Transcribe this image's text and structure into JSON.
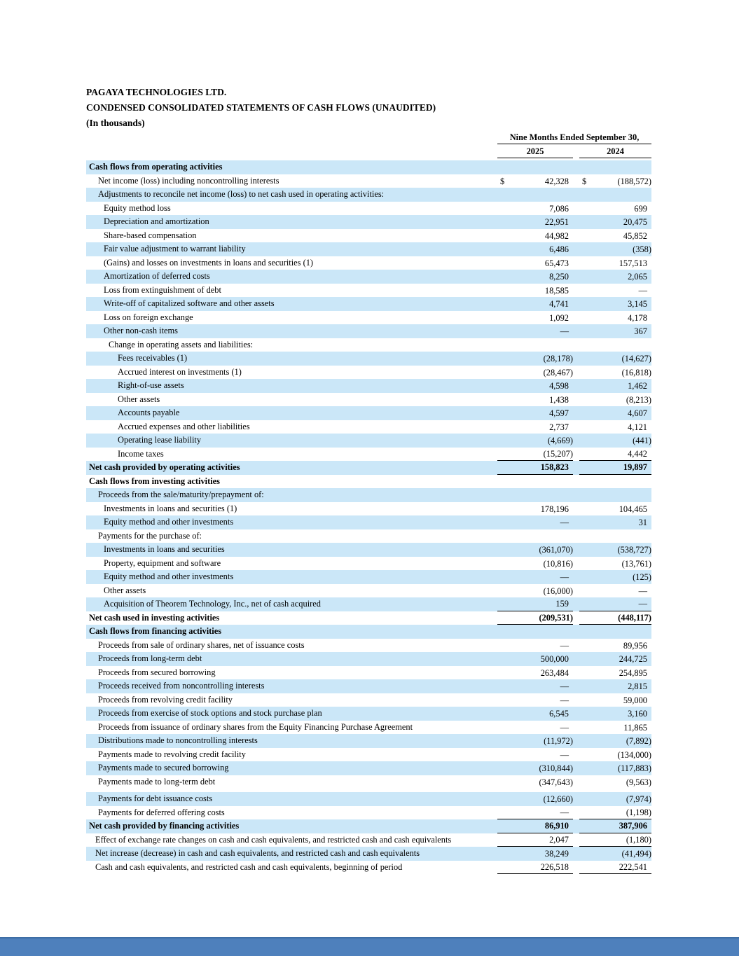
{
  "colors": {
    "highlight": "#cbe7f8",
    "footer_bar": "#4e80bc",
    "footer_bar_edge": "#3e6ea5",
    "text": "#000000"
  },
  "document": {
    "title_lines": [
      "PAGAYA TECHNOLOGIES LTD.",
      "CONDENSED CONSOLIDATED STATEMENTS OF CASH FLOWS (UNAUDITED)",
      "(In thousands)"
    ]
  },
  "table": {
    "period_header": "Nine Months Ended September 30,",
    "columns": [
      "2025",
      "2024"
    ],
    "currency_symbol": "$",
    "rows": [
      {
        "label": "Cash flows from operating activities",
        "indent": 0,
        "bold": true,
        "highlight": true,
        "dollar": false,
        "v2025": "",
        "v2024": "",
        "rule_below": false,
        "gap_before": false
      },
      {
        "label": "Net income (loss) including noncontrolling interests",
        "indent": 13,
        "bold": false,
        "highlight": false,
        "dollar": true,
        "v2025": "42,328",
        "v2024": "(188,572)",
        "rule_below": false,
        "gap_before": false
      },
      {
        "label": "Adjustments to reconcile net income (loss) to net cash used in operating activities:",
        "indent": 13,
        "bold": false,
        "highlight": true,
        "dollar": false,
        "v2025": "",
        "v2024": "",
        "rule_below": false,
        "gap_before": false
      },
      {
        "label": "Equity method loss",
        "indent": 21,
        "bold": false,
        "highlight": false,
        "dollar": false,
        "v2025": "7,086",
        "v2024": "699",
        "rule_below": false,
        "gap_before": false
      },
      {
        "label": "Depreciation and amortization",
        "indent": 21,
        "bold": false,
        "highlight": true,
        "dollar": false,
        "v2025": "22,951",
        "v2024": "20,475",
        "rule_below": false,
        "gap_before": false
      },
      {
        "label": "Share-based compensation",
        "indent": 21,
        "bold": false,
        "highlight": false,
        "dollar": false,
        "v2025": "44,982",
        "v2024": "45,852",
        "rule_below": false,
        "gap_before": false
      },
      {
        "label": "Fair value adjustment to warrant liability",
        "indent": 21,
        "bold": false,
        "highlight": true,
        "dollar": false,
        "v2025": "6,486",
        "v2024": "(358)",
        "rule_below": false,
        "gap_before": false
      },
      {
        "label": "(Gains) and losses on investments in loans and securities (1)",
        "indent": 21,
        "bold": false,
        "highlight": false,
        "dollar": false,
        "v2025": "65,473",
        "v2024": "157,513",
        "rule_below": false,
        "gap_before": false
      },
      {
        "label": "Amortization of deferred costs",
        "indent": 21,
        "bold": false,
        "highlight": true,
        "dollar": false,
        "v2025": "8,250",
        "v2024": "2,065",
        "rule_below": false,
        "gap_before": false
      },
      {
        "label": "Loss from extinguishment of debt",
        "indent": 21,
        "bold": false,
        "highlight": false,
        "dollar": false,
        "v2025": "18,585",
        "v2024": "—",
        "rule_below": false,
        "gap_before": false
      },
      {
        "label": "Write-off of capitalized software and other assets",
        "indent": 21,
        "bold": false,
        "highlight": true,
        "dollar": false,
        "v2025": "4,741",
        "v2024": "3,145",
        "rule_below": false,
        "gap_before": false
      },
      {
        "label": "Loss on foreign exchange",
        "indent": 21,
        "bold": false,
        "highlight": false,
        "dollar": false,
        "v2025": "1,092",
        "v2024": "4,178",
        "rule_below": false,
        "gap_before": false
      },
      {
        "label": "Other non-cash items",
        "indent": 21,
        "bold": false,
        "highlight": true,
        "dollar": false,
        "v2025": "—",
        "v2024": "367",
        "rule_below": false,
        "gap_before": false
      },
      {
        "label": "Change in operating assets and liabilities:",
        "indent": 28,
        "bold": false,
        "highlight": false,
        "dollar": false,
        "v2025": "",
        "v2024": "",
        "rule_below": false,
        "gap_before": false
      },
      {
        "label": "Fees receivables (1)",
        "indent": 41,
        "bold": false,
        "highlight": true,
        "dollar": false,
        "v2025": "(28,178)",
        "v2024": "(14,627)",
        "rule_below": false,
        "gap_before": false
      },
      {
        "label": "Accrued interest on investments (1)",
        "indent": 41,
        "bold": false,
        "highlight": false,
        "dollar": false,
        "v2025": "(28,467)",
        "v2024": "(16,818)",
        "rule_below": false,
        "gap_before": false
      },
      {
        "label": "Right-of-use assets",
        "indent": 41,
        "bold": false,
        "highlight": true,
        "dollar": false,
        "v2025": "4,598",
        "v2024": "1,462",
        "rule_below": false,
        "gap_before": false
      },
      {
        "label": "Other assets",
        "indent": 41,
        "bold": false,
        "highlight": false,
        "dollar": false,
        "v2025": "1,438",
        "v2024": "(8,213)",
        "rule_below": false,
        "gap_before": false
      },
      {
        "label": "Accounts payable",
        "indent": 41,
        "bold": false,
        "highlight": true,
        "dollar": false,
        "v2025": "4,597",
        "v2024": "4,607",
        "rule_below": false,
        "gap_before": false
      },
      {
        "label": "Accrued expenses and other liabilities",
        "indent": 41,
        "bold": false,
        "highlight": false,
        "dollar": false,
        "v2025": "2,737",
        "v2024": "4,121",
        "rule_below": false,
        "gap_before": false
      },
      {
        "label": "Operating lease liability",
        "indent": 41,
        "bold": false,
        "highlight": true,
        "dollar": false,
        "v2025": "(4,669)",
        "v2024": "(441)",
        "rule_below": false,
        "gap_before": false
      },
      {
        "label": "Income taxes",
        "indent": 41,
        "bold": false,
        "highlight": false,
        "dollar": false,
        "v2025": "(15,207)",
        "v2024": "4,442",
        "rule_below": true,
        "gap_before": false
      },
      {
        "label": "Net cash provided by operating activities",
        "indent": 0,
        "bold": true,
        "highlight": true,
        "dollar": false,
        "v2025": "158,823",
        "v2024": "19,897",
        "rule_below": true,
        "gap_before": false
      },
      {
        "label": "Cash flows from investing activities",
        "indent": 0,
        "bold": true,
        "highlight": false,
        "dollar": false,
        "v2025": "",
        "v2024": "",
        "rule_below": false,
        "gap_before": false
      },
      {
        "label": "Proceeds from the sale/maturity/prepayment of:",
        "indent": 13,
        "bold": false,
        "highlight": true,
        "dollar": false,
        "v2025": "",
        "v2024": "",
        "rule_below": false,
        "gap_before": false
      },
      {
        "label": "Investments in loans and securities (1)",
        "indent": 21,
        "bold": false,
        "highlight": false,
        "dollar": false,
        "v2025": "178,196",
        "v2024": "104,465",
        "rule_below": false,
        "gap_before": false
      },
      {
        "label": "Equity method and other investments",
        "indent": 21,
        "bold": false,
        "highlight": true,
        "dollar": false,
        "v2025": "—",
        "v2024": "31",
        "rule_below": false,
        "gap_before": false
      },
      {
        "label": "Payments for the purchase of:",
        "indent": 13,
        "bold": false,
        "highlight": false,
        "dollar": false,
        "v2025": "",
        "v2024": "",
        "rule_below": false,
        "gap_before": false
      },
      {
        "label": "Investments in loans and securities",
        "indent": 21,
        "bold": false,
        "highlight": true,
        "dollar": false,
        "v2025": "(361,070)",
        "v2024": "(538,727)",
        "rule_below": false,
        "gap_before": false
      },
      {
        "label": "Property, equipment and software",
        "indent": 21,
        "bold": false,
        "highlight": false,
        "dollar": false,
        "v2025": "(10,816)",
        "v2024": "(13,761)",
        "rule_below": false,
        "gap_before": false
      },
      {
        "label": "Equity method and other investments",
        "indent": 21,
        "bold": false,
        "highlight": true,
        "dollar": false,
        "v2025": "—",
        "v2024": "(125)",
        "rule_below": false,
        "gap_before": false
      },
      {
        "label": "Other assets",
        "indent": 21,
        "bold": false,
        "highlight": false,
        "dollar": false,
        "v2025": "(16,000)",
        "v2024": "—",
        "rule_below": false,
        "gap_before": false
      },
      {
        "label": "Acquisition of Theorem Technology, Inc., net of cash acquired",
        "indent": 21,
        "bold": false,
        "highlight": true,
        "dollar": false,
        "v2025": "159",
        "v2024": "—",
        "rule_below": true,
        "gap_before": false
      },
      {
        "label": "Net cash used in investing activities",
        "indent": 0,
        "bold": true,
        "highlight": false,
        "dollar": false,
        "v2025": "(209,531)",
        "v2024": "(448,117)",
        "rule_below": true,
        "gap_before": false
      },
      {
        "label": "Cash flows from financing activities",
        "indent": 0,
        "bold": true,
        "highlight": true,
        "dollar": false,
        "v2025": "",
        "v2024": "",
        "rule_below": false,
        "gap_before": false
      },
      {
        "label": "Proceeds from sale of ordinary shares, net of issuance costs",
        "indent": 13,
        "bold": false,
        "highlight": false,
        "dollar": false,
        "v2025": "—",
        "v2024": "89,956",
        "rule_below": false,
        "gap_before": false
      },
      {
        "label": "Proceeds from long-term debt",
        "indent": 13,
        "bold": false,
        "highlight": true,
        "dollar": false,
        "v2025": "500,000",
        "v2024": "244,725",
        "rule_below": false,
        "gap_before": false
      },
      {
        "label": "Proceeds from secured borrowing",
        "indent": 13,
        "bold": false,
        "highlight": false,
        "dollar": false,
        "v2025": "263,484",
        "v2024": "254,895",
        "rule_below": false,
        "gap_before": false
      },
      {
        "label": "Proceeds received from noncontrolling interests",
        "indent": 13,
        "bold": false,
        "highlight": true,
        "dollar": false,
        "v2025": "—",
        "v2024": "2,815",
        "rule_below": false,
        "gap_before": false
      },
      {
        "label": "Proceeds from revolving credit facility",
        "indent": 13,
        "bold": false,
        "highlight": false,
        "dollar": false,
        "v2025": "—",
        "v2024": "59,000",
        "rule_below": false,
        "gap_before": false
      },
      {
        "label": "Proceeds from exercise of stock options and stock purchase plan",
        "indent": 13,
        "bold": false,
        "highlight": true,
        "dollar": false,
        "v2025": "6,545",
        "v2024": "3,160",
        "rule_below": false,
        "gap_before": false
      },
      {
        "label": "Proceeds from issuance of ordinary shares from the Equity Financing Purchase Agreement",
        "indent": 13,
        "bold": false,
        "highlight": false,
        "dollar": false,
        "v2025": "—",
        "v2024": "11,865",
        "rule_below": false,
        "gap_before": false
      },
      {
        "label": "Distributions made to noncontrolling interests",
        "indent": 13,
        "bold": false,
        "highlight": true,
        "dollar": false,
        "v2025": "(11,972)",
        "v2024": "(7,892)",
        "rule_below": false,
        "gap_before": false
      },
      {
        "label": "Payments made to revolving credit facility",
        "indent": 13,
        "bold": false,
        "highlight": false,
        "dollar": false,
        "v2025": "—",
        "v2024": "(134,000)",
        "rule_below": false,
        "gap_before": false
      },
      {
        "label": "Payments made to secured borrowing",
        "indent": 13,
        "bold": false,
        "highlight": true,
        "dollar": false,
        "v2025": "(310,844)",
        "v2024": "(117,883)",
        "rule_below": false,
        "gap_before": false
      },
      {
        "label": "Payments made to long-term debt",
        "indent": 13,
        "bold": false,
        "highlight": false,
        "dollar": false,
        "v2025": "(347,643)",
        "v2024": "(9,563)",
        "rule_below": false,
        "gap_before": false
      },
      {
        "label": "Payments for debt issuance costs",
        "indent": 13,
        "bold": false,
        "highlight": true,
        "dollar": false,
        "v2025": "(12,660)",
        "v2024": "(7,974)",
        "rule_below": false,
        "gap_before": true
      },
      {
        "label": "Payments for deferred offering costs",
        "indent": 13,
        "bold": false,
        "highlight": false,
        "dollar": false,
        "v2025": "—",
        "v2024": "(1,198)",
        "rule_below": true,
        "gap_before": false
      },
      {
        "label": "Net cash provided by financing activities",
        "indent": 0,
        "bold": true,
        "highlight": true,
        "dollar": false,
        "v2025": "86,910",
        "v2024": "387,906",
        "rule_below": true,
        "gap_before": false
      },
      {
        "label": "Effect of exchange rate changes on cash and cash equivalents, and restricted cash and cash equivalents",
        "indent": 9,
        "bold": false,
        "highlight": false,
        "dollar": false,
        "v2025": "2,047",
        "v2024": "(1,180)",
        "rule_below": true,
        "gap_before": false
      },
      {
        "label": "Net increase (decrease) in cash and cash equivalents, and restricted cash and cash equivalents",
        "indent": 9,
        "bold": false,
        "highlight": true,
        "dollar": false,
        "v2025": "38,249",
        "v2024": "(41,494)",
        "rule_below": false,
        "gap_before": false
      },
      {
        "label": "Cash and cash equivalents, and restricted cash and cash equivalents, beginning of period",
        "indent": 9,
        "bold": false,
        "highlight": false,
        "dollar": false,
        "v2025": "226,518",
        "v2024": "222,541",
        "rule_below": true,
        "gap_before": false
      }
    ]
  }
}
